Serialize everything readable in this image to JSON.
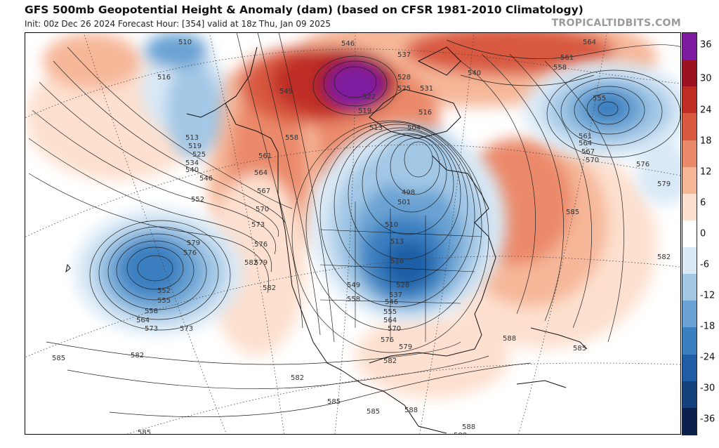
{
  "header": {
    "title": "GFS 500mb Geopotential Height & Anomaly (dam) (based on CFSR 1981-2010 Climatology)",
    "subtitle": "Init: 00z Dec 26 2024   Forecast Hour: [354]   valid at 18z Thu, Jan 09 2025",
    "brand": "TROPICALTIDBITS.COM"
  },
  "colorbar": {
    "ticks": [
      "36",
      "30",
      "24",
      "18",
      "12",
      "6",
      "0",
      "-6",
      "-12",
      "-18",
      "-24",
      "-30",
      "-36"
    ],
    "colors": [
      "#0b1f4d",
      "#14407c",
      "#1f5ea6",
      "#3a7fc0",
      "#6aa3d3",
      "#a3c8e6",
      "#d9e9f6",
      "#ffffff",
      "#fde0cf",
      "#f6b799",
      "#eb8a6b",
      "#d8593f",
      "#bf2d25",
      "#9b1320",
      "#7e1aa0"
    ]
  },
  "map": {
    "colors": {
      "land_outline": "#111111",
      "contour": "#222222",
      "dotted_grid": "#444444"
    },
    "contour_labels": [
      "510",
      "516",
      "513",
      "519",
      "525",
      "534",
      "540",
      "546",
      "552",
      "549",
      "546",
      "537",
      "528",
      "525",
      "531",
      "522",
      "519",
      "516",
      "513",
      "504",
      "498",
      "501",
      "510",
      "513",
      "516",
      "528",
      "537",
      "546",
      "555",
      "564",
      "570",
      "576",
      "579",
      "558",
      "561",
      "564",
      "567",
      "570",
      "573",
      "576",
      "579",
      "582",
      "552",
      "555",
      "558",
      "564",
      "573",
      "549",
      "558",
      "582",
      "585",
      "582",
      "585",
      "588",
      "582",
      "585",
      "588",
      "585",
      "588",
      "588",
      "573",
      "576",
      "579",
      "582",
      "540",
      "561",
      "558",
      "564",
      "555",
      "561",
      "564",
      "567",
      "570",
      "576",
      "579",
      "585",
      "582",
      "585"
    ]
  }
}
